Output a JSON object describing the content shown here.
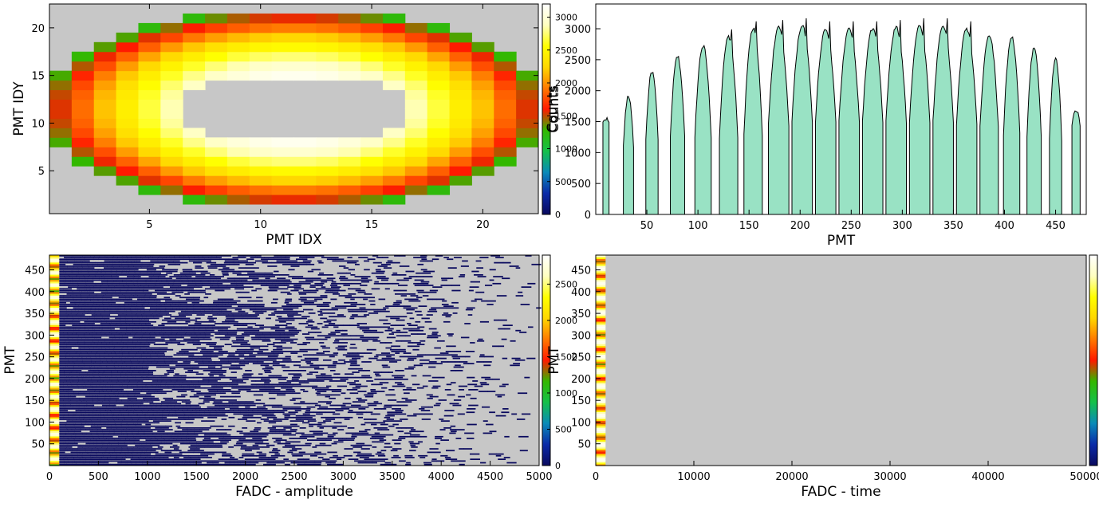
{
  "chart_data": [
    {
      "type": "heatmap",
      "id": "pmt-map",
      "xlabel": "PMT IDX",
      "ylabel": "PMT IDY",
      "zlabel": "Counts",
      "xlim": [
        0.5,
        22.5
      ],
      "ylim": [
        0.5,
        22.5
      ],
      "xticks": [
        5,
        10,
        15,
        20
      ],
      "yticks": [
        5,
        10,
        15,
        20
      ],
      "zlim": [
        0,
        3200
      ],
      "zticks": [
        0,
        500,
        1000,
        1500,
        2000,
        2500,
        3000
      ],
      "ellipse_center": [
        11.5,
        11.5
      ],
      "ring_radius_x": 11,
      "ring_radius_y": 10,
      "peak_counts": 3150,
      "empty_center_rx": 5.5,
      "empty_center_ry": 3.5
    },
    {
      "type": "area",
      "id": "pmt-hist",
      "xlabel": "PMT",
      "ylabel": "Counts",
      "xlim": [
        0,
        480
      ],
      "ylim": [
        0,
        3400
      ],
      "xticks": [
        50,
        100,
        150,
        200,
        250,
        300,
        350,
        400,
        450
      ],
      "yticks": [
        0,
        500,
        1000,
        1500,
        2000,
        2500,
        3000
      ],
      "row_starts": [
        7,
        27,
        49,
        73,
        97,
        121,
        145,
        169,
        192,
        215,
        238,
        261,
        284,
        307,
        330,
        353,
        376,
        399,
        422,
        444,
        466
      ],
      "row_widths": [
        6,
        10,
        12,
        14,
        16,
        18,
        18,
        20,
        20,
        20,
        20,
        20,
        20,
        20,
        20,
        20,
        18,
        16,
        14,
        12,
        8
      ],
      "row_peaks": [
        1550,
        1910,
        2310,
        2550,
        2730,
        2870,
        3000,
        3020,
        3050,
        3000,
        3000,
        3000,
        3020,
        3050,
        3050,
        3000,
        2900,
        2870,
        2700,
        2520,
        1680
      ],
      "row_edges": [
        1480,
        1100,
        1200,
        1250,
        1250,
        1250,
        1300,
        1450,
        1500,
        1500,
        1500,
        1500,
        1500,
        1500,
        1500,
        1450,
        1400,
        1300,
        1250,
        1200,
        1450
      ],
      "fill_color": "#99e2c4"
    },
    {
      "type": "heatmap",
      "id": "fadc-amplitude",
      "xlabel": "FADC - amplitude",
      "ylabel": "PMT",
      "xlim": [
        0,
        5000
      ],
      "ylim": [
        0,
        484
      ],
      "xticks": [
        0,
        500,
        1000,
        1500,
        2000,
        2500,
        3000,
        3500,
        4000,
        4500,
        5000
      ],
      "yticks": [
        50,
        100,
        150,
        200,
        250,
        300,
        350,
        400,
        450
      ],
      "zlim": [
        0,
        2900
      ],
      "zticks": [
        0,
        500,
        1000,
        1500,
        2000,
        2500
      ],
      "dense_until": 1000,
      "fade_until": 5000,
      "band_color": "#0a0a5e"
    },
    {
      "type": "heatmap",
      "id": "fadc-time",
      "xlabel": "FADC - time",
      "ylabel": "PMT",
      "xlim": [
        0,
        50000
      ],
      "ylim": [
        0,
        484
      ],
      "xticks": [
        0,
        10000,
        20000,
        30000,
        40000,
        50000
      ],
      "yticks": [
        50,
        100,
        150,
        200,
        250,
        300,
        350,
        400,
        450
      ],
      "zticks": [],
      "active_time_range": [
        0,
        1000
      ]
    }
  ],
  "colors": {
    "background": "#c7c7c7",
    "colormap": [
      "#0a0a5e",
      "#0a2aa8",
      "#0a8ab8",
      "#14c04a",
      "#33b800",
      "#ff1a00",
      "#ff7a00",
      "#ffd700",
      "#ffff00",
      "#ffffc0",
      "#ffffff"
    ]
  }
}
